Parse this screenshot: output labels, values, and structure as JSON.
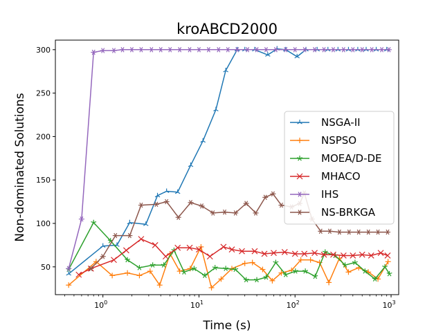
{
  "chart_data": {
    "type": "line",
    "title": "kroABCD2000",
    "xlabel": "Time (s)",
    "ylabel": "Non-dominated Solutions",
    "xscale": "log",
    "xlim": [
      0.32,
      1200
    ],
    "ylim": [
      18,
      311
    ],
    "x_ticks": [
      {
        "value": 1,
        "base": "10",
        "exp": "0"
      },
      {
        "value": 10,
        "base": "10",
        "exp": "1"
      },
      {
        "value": 100,
        "base": "10",
        "exp": "2"
      },
      {
        "value": 1000,
        "base": "10",
        "exp": "3"
      }
    ],
    "y_ticks": [
      {
        "value": 50,
        "label": "50"
      },
      {
        "value": 100,
        "label": "100"
      },
      {
        "value": 150,
        "label": "150"
      },
      {
        "value": 200,
        "label": "200"
      },
      {
        "value": 250,
        "label": "250"
      },
      {
        "value": 300,
        "label": "300"
      }
    ],
    "grid": false,
    "legend_position": "center-right",
    "series": [
      {
        "name": "NSGA-II",
        "color": "#1f77b4",
        "marker": "tri",
        "points": [
          [
            0.44,
            42
          ],
          [
            1.0,
            74
          ],
          [
            1.4,
            75
          ],
          [
            1.9,
            101
          ],
          [
            2.8,
            99
          ],
          [
            3.7,
            132
          ],
          [
            4.6,
            137
          ],
          [
            6.0,
            136
          ],
          [
            8.2,
            167
          ],
          [
            11,
            195
          ],
          [
            15,
            231
          ],
          [
            19,
            276
          ],
          [
            25,
            300
          ],
          [
            30,
            300
          ],
          [
            38,
            300
          ],
          [
            52,
            294
          ],
          [
            65,
            301
          ],
          [
            80,
            300
          ],
          [
            105,
            292
          ],
          [
            130,
            300
          ],
          [
            170,
            300
          ],
          [
            220,
            300
          ],
          [
            280,
            300
          ],
          [
            360,
            300
          ],
          [
            450,
            300
          ],
          [
            550,
            300
          ],
          [
            700,
            300
          ],
          [
            900,
            300
          ]
        ]
      },
      {
        "name": "NSPSO",
        "color": "#ff7f0e",
        "marker": "plus",
        "points": [
          [
            0.44,
            29
          ],
          [
            0.85,
            56
          ],
          [
            1.25,
            40
          ],
          [
            1.8,
            43
          ],
          [
            2.4,
            40
          ],
          [
            3.1,
            45
          ],
          [
            3.9,
            29
          ],
          [
            5.0,
            65
          ],
          [
            6.3,
            45
          ],
          [
            8.1,
            48
          ],
          [
            10.5,
            73
          ],
          [
            13.5,
            26
          ],
          [
            17,
            36
          ],
          [
            22,
            48
          ],
          [
            30,
            54
          ],
          [
            36,
            55
          ],
          [
            46,
            47
          ],
          [
            58,
            34
          ],
          [
            72,
            43
          ],
          [
            92,
            46
          ],
          [
            115,
            58
          ],
          [
            145,
            58
          ],
          [
            180,
            55
          ],
          [
            225,
            32
          ],
          [
            290,
            60
          ],
          [
            360,
            44
          ],
          [
            460,
            49
          ],
          [
            580,
            44
          ],
          [
            730,
            36
          ],
          [
            930,
            56
          ]
        ]
      },
      {
        "name": "MOEA/D-DE",
        "color": "#2ca02c",
        "marker": "star",
        "points": [
          [
            0.44,
            47
          ],
          [
            0.8,
            101
          ],
          [
            1.2,
            80
          ],
          [
            1.8,
            58
          ],
          [
            2.4,
            49
          ],
          [
            3.3,
            52
          ],
          [
            4.3,
            52
          ],
          [
            5.5,
            69
          ],
          [
            7.0,
            44
          ],
          [
            8.9,
            48
          ],
          [
            11.5,
            40
          ],
          [
            14.7,
            49
          ],
          [
            19,
            48
          ],
          [
            24,
            47
          ],
          [
            31,
            35
          ],
          [
            40,
            35
          ],
          [
            50,
            38
          ],
          [
            63,
            55
          ],
          [
            80,
            41
          ],
          [
            101,
            45
          ],
          [
            128,
            45
          ],
          [
            162,
            39
          ],
          [
            206,
            67
          ],
          [
            262,
            63
          ],
          [
            332,
            52
          ],
          [
            421,
            55
          ],
          [
            535,
            45
          ],
          [
            679,
            36
          ],
          [
            862,
            50
          ],
          [
            960,
            42
          ]
        ]
      },
      {
        "name": "MHACO",
        "color": "#d62728",
        "marker": "x",
        "points": [
          [
            0.56,
            41
          ],
          [
            0.75,
            48
          ],
          [
            1.3,
            58
          ],
          [
            1.75,
            69
          ],
          [
            2.5,
            82
          ],
          [
            3.5,
            75
          ],
          [
            4.5,
            62
          ],
          [
            6.0,
            72
          ],
          [
            8.0,
            72
          ],
          [
            10.0,
            70
          ],
          [
            13.0,
            62
          ],
          [
            18,
            73
          ],
          [
            22,
            70
          ],
          [
            28,
            68
          ],
          [
            38,
            68
          ],
          [
            48,
            65
          ],
          [
            60,
            66
          ],
          [
            78,
            67
          ],
          [
            100,
            65
          ],
          [
            125,
            65
          ],
          [
            160,
            66
          ],
          [
            200,
            64
          ],
          [
            250,
            64
          ],
          [
            320,
            63
          ],
          [
            400,
            63
          ],
          [
            500,
            64
          ],
          [
            620,
            63
          ],
          [
            780,
            66
          ],
          [
            920,
            63
          ]
        ]
      },
      {
        "name": "IHS",
        "color": "#9467bd",
        "marker": "asterisk",
        "points": [
          [
            0.44,
            48
          ],
          [
            0.6,
            105
          ],
          [
            0.8,
            297
          ],
          [
            1.0,
            299
          ],
          [
            1.3,
            299
          ],
          [
            1.6,
            300
          ],
          [
            2.0,
            300
          ],
          [
            2.5,
            300
          ],
          [
            3.2,
            300
          ],
          [
            4.0,
            300
          ],
          [
            5.0,
            300
          ],
          [
            6.3,
            300
          ],
          [
            8.0,
            300
          ],
          [
            10.0,
            300
          ],
          [
            12.6,
            300
          ],
          [
            16,
            300
          ],
          [
            20,
            300
          ],
          [
            25,
            300
          ],
          [
            32,
            300
          ],
          [
            40,
            300
          ],
          [
            50,
            300
          ],
          [
            63,
            300
          ],
          [
            80,
            300
          ],
          [
            100,
            300
          ],
          [
            126,
            300
          ],
          [
            160,
            300
          ],
          [
            200,
            300
          ],
          [
            250,
            300
          ],
          [
            320,
            300
          ],
          [
            400,
            300
          ],
          [
            500,
            300
          ],
          [
            630,
            300
          ],
          [
            800,
            300
          ],
          [
            950,
            300
          ]
        ]
      },
      {
        "name": "NS-BRKGA",
        "color": "#8c564b",
        "marker": "asterisk",
        "points": [
          [
            0.75,
            48
          ],
          [
            1.0,
            62
          ],
          [
            1.35,
            86
          ],
          [
            1.9,
            86
          ],
          [
            2.5,
            121
          ],
          [
            3.6,
            122
          ],
          [
            4.6,
            125
          ],
          [
            6.1,
            107
          ],
          [
            8.2,
            124
          ],
          [
            10.7,
            120
          ],
          [
            14,
            112
          ],
          [
            18.5,
            113
          ],
          [
            24,
            112
          ],
          [
            31,
            123
          ],
          [
            39,
            112
          ],
          [
            49,
            130
          ],
          [
            59,
            134
          ],
          [
            72,
            121
          ],
          [
            92,
            119
          ],
          [
            112,
            123
          ],
          [
            125,
            135
          ],
          [
            150,
            105
          ],
          [
            185,
            91
          ],
          [
            230,
            91
          ],
          [
            290,
            90
          ],
          [
            365,
            90
          ],
          [
            460,
            90
          ],
          [
            580,
            90
          ],
          [
            730,
            90
          ],
          [
            920,
            90
          ]
        ]
      }
    ]
  }
}
